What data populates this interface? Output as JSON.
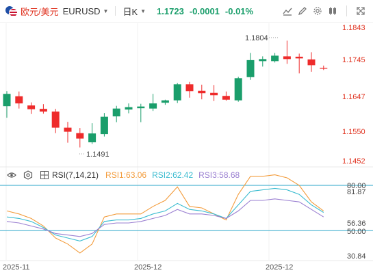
{
  "header": {
    "symbol_cn": "欧元/美元",
    "symbol_en": "EURUSD",
    "period": "日K",
    "price": "1.1723",
    "change": "-0.0001",
    "change_pct": "-0.01%",
    "icons": [
      "ruler-icon",
      "pencil-icon",
      "gear-icon",
      "scissors-icon",
      "expand-icon"
    ]
  },
  "price_axis": {
    "labels": [
      "1.1843",
      "1.1745",
      "1.1647",
      "1.1550",
      "1.1452"
    ],
    "label_color": "#e0321f"
  },
  "annotations": {
    "high": "1.1804",
    "low": "1.1491"
  },
  "indicator": {
    "name": "RSI(7,14,21)",
    "rsi1_label": "RSI1:63.06",
    "rsi2_label": "RSI2:62.42",
    "rsi3_label": "RSI3:58.68",
    "axis_labels": [
      "80.00",
      "81.87",
      "56.36",
      "50.00",
      "30.84"
    ]
  },
  "dates": [
    "2025-11",
    "2025-12",
    "2025-12"
  ],
  "colors": {
    "up": "#1a9e6b",
    "down": "#ee2b2b",
    "rsi1": "#f39c3c",
    "rsi2": "#3bbcd0",
    "rsi3": "#9a7fd1",
    "ref": "#2aa6c9"
  },
  "chart_data": [
    {
      "type": "candlestick",
      "title": "欧元/美元 日K",
      "ylim": [
        1.1452,
        1.1843
      ],
      "candles": [
        {
          "o": 1.1612,
          "h": 1.1656,
          "l": 1.1578,
          "c": 1.1648
        },
        {
          "o": 1.1641,
          "h": 1.1655,
          "l": 1.1605,
          "c": 1.162
        },
        {
          "o": 1.1614,
          "h": 1.1623,
          "l": 1.1589,
          "c": 1.1603
        },
        {
          "o": 1.1604,
          "h": 1.1618,
          "l": 1.159,
          "c": 1.1596
        },
        {
          "o": 1.1596,
          "h": 1.1604,
          "l": 1.1533,
          "c": 1.1549
        },
        {
          "o": 1.1549,
          "h": 1.1566,
          "l": 1.1505,
          "c": 1.1537
        },
        {
          "o": 1.1533,
          "h": 1.1548,
          "l": 1.1491,
          "c": 1.1517
        },
        {
          "o": 1.1506,
          "h": 1.1562,
          "l": 1.1501,
          "c": 1.1532
        },
        {
          "o": 1.153,
          "h": 1.1592,
          "l": 1.1523,
          "c": 1.1581
        },
        {
          "o": 1.1582,
          "h": 1.1613,
          "l": 1.1565,
          "c": 1.1605
        },
        {
          "o": 1.1602,
          "h": 1.162,
          "l": 1.1591,
          "c": 1.1609
        },
        {
          "o": 1.1606,
          "h": 1.1619,
          "l": 1.1565,
          "c": 1.1611
        },
        {
          "o": 1.1605,
          "h": 1.1648,
          "l": 1.1598,
          "c": 1.162
        },
        {
          "o": 1.1622,
          "h": 1.1631,
          "l": 1.1616,
          "c": 1.1629
        },
        {
          "o": 1.1629,
          "h": 1.168,
          "l": 1.1621,
          "c": 1.1676
        },
        {
          "o": 1.1676,
          "h": 1.1683,
          "l": 1.1637,
          "c": 1.1656
        },
        {
          "o": 1.1657,
          "h": 1.1675,
          "l": 1.1632,
          "c": 1.165
        },
        {
          "o": 1.1651,
          "h": 1.1674,
          "l": 1.1627,
          "c": 1.1644
        },
        {
          "o": 1.1642,
          "h": 1.1655,
          "l": 1.1628,
          "c": 1.1631
        },
        {
          "o": 1.1629,
          "h": 1.1698,
          "l": 1.1625,
          "c": 1.1694
        },
        {
          "o": 1.1697,
          "h": 1.1768,
          "l": 1.1689,
          "c": 1.1747
        },
        {
          "o": 1.1744,
          "h": 1.1758,
          "l": 1.1728,
          "c": 1.175
        },
        {
          "o": 1.1744,
          "h": 1.1768,
          "l": 1.174,
          "c": 1.176
        },
        {
          "o": 1.1758,
          "h": 1.1804,
          "l": 1.1736,
          "c": 1.175
        },
        {
          "o": 1.1757,
          "h": 1.1766,
          "l": 1.1708,
          "c": 1.1752
        },
        {
          "o": 1.1749,
          "h": 1.177,
          "l": 1.1713,
          "c": 1.1732
        },
        {
          "o": 1.1724,
          "h": 1.1731,
          "l": 1.1718,
          "c": 1.1723
        }
      ]
    },
    {
      "type": "line",
      "title": "RSI(7,14,21)",
      "ylim": [
        30.84,
        85
      ],
      "series": [
        {
          "name": "RSI1",
          "values": [
            63,
            61,
            58,
            53,
            45,
            41,
            35,
            41,
            59,
            61,
            61,
            61,
            66,
            70,
            79,
            66,
            65,
            61,
            57,
            74,
            86,
            86,
            87,
            85,
            80,
            69,
            63
          ]
        },
        {
          "name": "RSI2",
          "values": [
            59,
            58,
            56,
            52,
            47,
            45,
            43,
            46,
            56,
            57,
            57,
            58,
            61,
            63,
            68,
            64,
            63,
            61,
            58,
            67,
            76,
            77,
            78,
            77,
            74,
            67,
            62
          ]
        },
        {
          "name": "RSI3",
          "values": [
            56,
            55,
            53,
            51,
            48,
            47,
            46,
            48,
            54,
            55,
            55,
            56,
            58,
            60,
            64,
            61,
            61,
            60,
            58,
            63,
            70,
            70,
            71,
            70,
            69,
            64,
            59
          ]
        }
      ]
    }
  ]
}
